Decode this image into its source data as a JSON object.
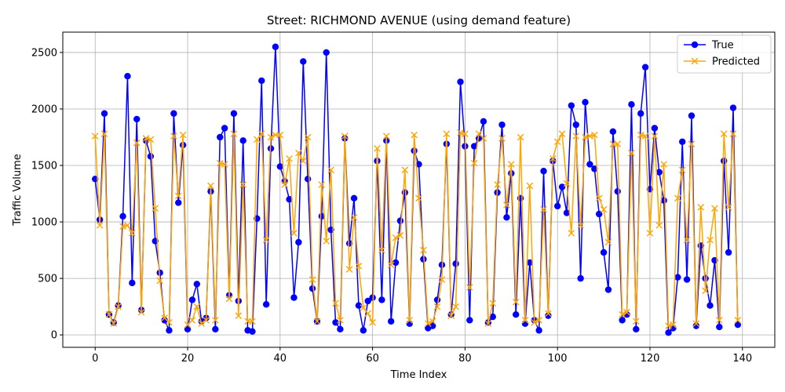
{
  "chart_data": {
    "type": "line",
    "title": "Street: RICHMOND AVENUE (using demand feature)",
    "xlabel": "Time Index",
    "ylabel": "Traffic Volume",
    "xlim": [
      -7,
      147
    ],
    "ylim": [
      -110,
      2680
    ],
    "xticks": [
      0,
      20,
      40,
      60,
      80,
      100,
      120,
      140
    ],
    "yticks": [
      0,
      500,
      1000,
      1500,
      2000,
      2500
    ],
    "grid": true,
    "legend_position": "top-right",
    "series": [
      {
        "name": "True",
        "color": "#0000ff",
        "marker": "circle",
        "values": [
          1380,
          1020,
          1960,
          180,
          110,
          260,
          1050,
          2290,
          460,
          1910,
          220,
          1720,
          1580,
          830,
          550,
          130,
          40,
          1960,
          1170,
          1680,
          50,
          310,
          450,
          120,
          150,
          1270,
          50,
          1750,
          1830,
          350,
          1960,
          300,
          1720,
          40,
          30,
          1030,
          2250,
          270,
          1650,
          2550,
          1490,
          1360,
          1200,
          330,
          820,
          2420,
          1380,
          410,
          120,
          1050,
          2500,
          930,
          110,
          50,
          1740,
          810,
          1210,
          260,
          40,
          300,
          330,
          1540,
          310,
          1720,
          120,
          640,
          1010,
          1260,
          100,
          1630,
          1510,
          670,
          60,
          80,
          310,
          620,
          1690,
          180,
          630,
          2240,
          1670,
          130,
          1670,
          1740,
          1890,
          110,
          160,
          1260,
          1860,
          1040,
          1430,
          180,
          1210,
          100,
          640,
          130,
          40,
          1450,
          170,
          1540,
          1140,
          1310,
          1080,
          2030,
          1860,
          500,
          2060,
          1510,
          1470,
          1070,
          730,
          400,
          1800,
          1270,
          130,
          180,
          2040,
          50,
          1960,
          2370,
          1290,
          1830,
          1440,
          1190,
          20,
          60,
          510,
          1710,
          490,
          1940,
          80,
          790,
          500,
          260,
          660,
          70,
          1540,
          730,
          2010,
          90
        ]
      },
      {
        "name": "Predicted",
        "color": "#ffa500",
        "marker": "x",
        "values": [
          1760,
          970,
          1780,
          180,
          100,
          250,
          960,
          970,
          900,
          1700,
          200,
          1740,
          1730,
          1120,
          480,
          150,
          110,
          1760,
          1230,
          1770,
          90,
          130,
          250,
          100,
          130,
          1320,
          130,
          1520,
          1510,
          320,
          1780,
          170,
          1330,
          120,
          120,
          1730,
          1780,
          840,
          1750,
          1770,
          1770,
          1330,
          1560,
          900,
          1610,
          1540,
          1750,
          490,
          120,
          1330,
          830,
          1460,
          280,
          130,
          1760,
          580,
          1040,
          610,
          240,
          190,
          110,
          1650,
          750,
          1760,
          620,
          860,
          880,
          1460,
          130,
          1770,
          1210,
          750,
          100,
          120,
          250,
          490,
          1780,
          170,
          250,
          1790,
          1780,
          420,
          1520,
          1780,
          1740,
          100,
          280,
          1330,
          1740,
          1150,
          1510,
          290,
          1750,
          130,
          1320,
          110,
          130,
          1110,
          190,
          1560,
          1710,
          1780,
          1340,
          900,
          1760,
          970,
          1750,
          1760,
          1770,
          1210,
          1110,
          820,
          1690,
          1690,
          180,
          200,
          1610,
          120,
          1770,
          1760,
          900,
          1760,
          970,
          1510,
          80,
          90,
          1210,
          1460,
          840,
          1690,
          100,
          1130,
          390,
          840,
          1120,
          130,
          1780,
          1130,
          1780,
          130
        ]
      }
    ]
  }
}
